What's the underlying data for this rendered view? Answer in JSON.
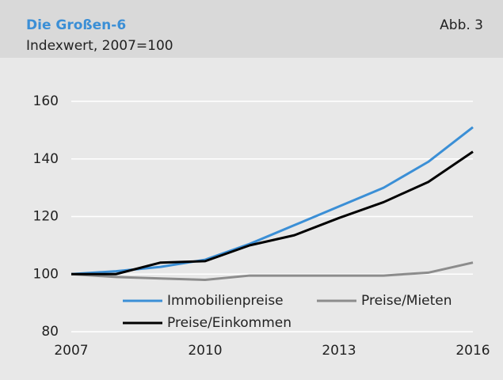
{
  "chart_data": {
    "type": "line",
    "title": "Die Großen-6",
    "subtitle": "Indexwert, 2007=100",
    "annotation": "Abb. 3",
    "x": [
      2007,
      2008,
      2009,
      2010,
      2011,
      2012,
      2013,
      2014,
      2015,
      2016
    ],
    "series": [
      {
        "name": "Immobilienpreise",
        "color": "#3b8fd6",
        "values": [
          100,
          101,
          102.5,
          105,
          110.5,
          117,
          123.5,
          130,
          139,
          151
        ]
      },
      {
        "name": "Preise/Mieten",
        "color": "#8c8c8c",
        "values": [
          100,
          99,
          98.5,
          98,
          99.5,
          99.5,
          99.5,
          99.5,
          100.5,
          104
        ]
      },
      {
        "name": "Preise/Einkommen",
        "color": "#000000",
        "values": [
          100,
          100,
          104,
          104.5,
          110,
          113.5,
          119.5,
          125,
          132,
          142.5
        ]
      }
    ],
    "xlim": [
      2007,
      2016
    ],
    "xticks": [
      2007,
      2010,
      2013,
      2016
    ],
    "ylim": [
      80,
      160
    ],
    "yticks": [
      80,
      100,
      120,
      140,
      160
    ],
    "grid": true
  }
}
